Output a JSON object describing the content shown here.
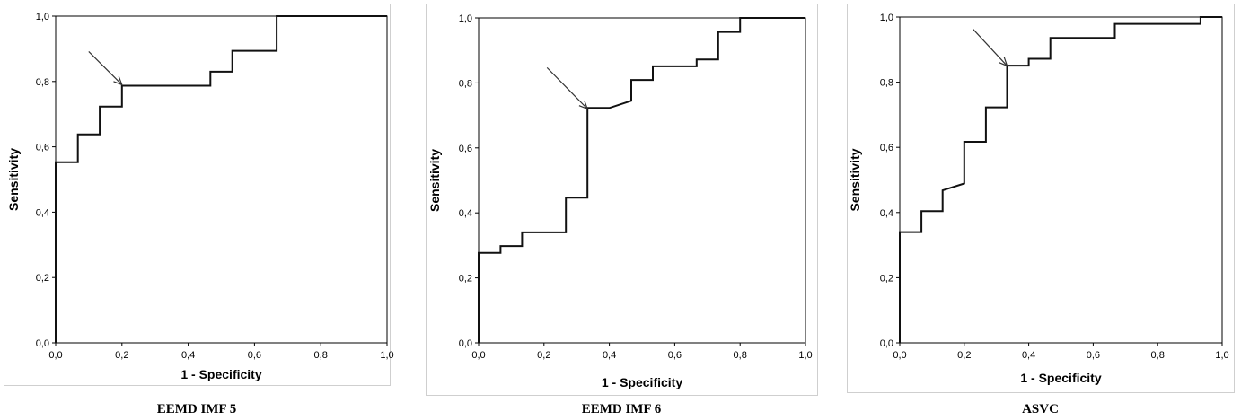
{
  "chart_data": [
    {
      "type": "line",
      "xlabel": "1 - Specificity",
      "ylabel": "Sensitivity",
      "caption": "EEMD IMF 5",
      "xlim": [
        0,
        1
      ],
      "ylim": [
        0,
        1
      ],
      "xticks": [
        "0,0",
        "0,2",
        "0,4",
        "0,6",
        "0,8",
        "1,0"
      ],
      "yticks": [
        "0,0",
        "0,2",
        "0,4",
        "0,6",
        "0,8",
        "1,0"
      ],
      "reference_line": false,
      "arrow_point": [
        0.2,
        0.79
      ],
      "x": [
        0,
        0,
        0.067,
        0.067,
        0.133,
        0.133,
        0.2,
        0.2,
        0.467,
        0.467,
        0.533,
        0.533,
        0.667,
        0.667,
        1.0
      ],
      "y": [
        0,
        0.553,
        0.553,
        0.638,
        0.638,
        0.723,
        0.723,
        0.787,
        0.787,
        0.83,
        0.83,
        0.894,
        0.894,
        1.0,
        1.0
      ]
    },
    {
      "type": "line",
      "xlabel": "1 - Specificity",
      "ylabel": "Sensitivity",
      "caption": "EEMD IMF 6",
      "xlim": [
        0,
        1
      ],
      "ylim": [
        0,
        1
      ],
      "xticks": [
        "0,0",
        "0,2",
        "0,4",
        "0,6",
        "0,8",
        "1,0"
      ],
      "yticks": [
        "0,0",
        "0,2",
        "0,4",
        "0,6",
        "0,8",
        "1,0"
      ],
      "reference_line": false,
      "arrow_point": [
        0.333,
        0.72
      ],
      "x": [
        0,
        0,
        0.067,
        0.067,
        0.133,
        0.133,
        0.267,
        0.267,
        0.333,
        0.333,
        0.4,
        0.467,
        0.467,
        0.533,
        0.533,
        0.667,
        0.667,
        0.733,
        0.733,
        0.8,
        0.8,
        1.0
      ],
      "y": [
        0,
        0.277,
        0.277,
        0.298,
        0.298,
        0.34,
        0.34,
        0.447,
        0.447,
        0.723,
        0.723,
        0.745,
        0.809,
        0.809,
        0.851,
        0.851,
        0.872,
        0.872,
        0.957,
        0.957,
        1.0,
        1.0
      ]
    },
    {
      "type": "line",
      "xlabel": "1 - Specificity",
      "ylabel": "Sensitivity",
      "caption": "ASVC",
      "xlim": [
        0,
        1
      ],
      "ylim": [
        0,
        1
      ],
      "xticks": [
        "0,0",
        "0,2",
        "0,4",
        "0,6",
        "0,8",
        "1,0"
      ],
      "yticks": [
        "0,0",
        "0,2",
        "0,4",
        "0,6",
        "0,8",
        "1,0"
      ],
      "reference_line": false,
      "arrow_point": [
        0.333,
        0.85
      ],
      "x": [
        0,
        0,
        0.067,
        0.067,
        0.133,
        0.133,
        0.2,
        0.2,
        0.267,
        0.267,
        0.333,
        0.333,
        0.4,
        0.4,
        0.467,
        0.467,
        0.667,
        0.667,
        0.933,
        0.933,
        1.0
      ],
      "y": [
        0,
        0.34,
        0.34,
        0.404,
        0.404,
        0.468,
        0.489,
        0.617,
        0.617,
        0.723,
        0.723,
        0.851,
        0.851,
        0.872,
        0.872,
        0.936,
        0.936,
        0.979,
        0.979,
        1.0,
        1.0
      ]
    }
  ]
}
